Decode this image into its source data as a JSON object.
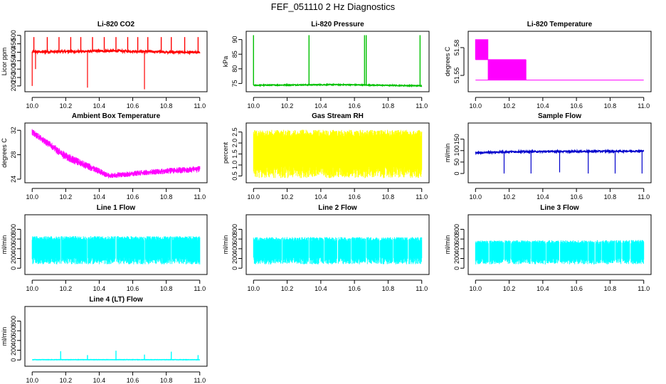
{
  "figure": {
    "title": "FEF_051110  2 Hz Diagnostics"
  },
  "chart_data": [
    {
      "type": "line",
      "title": "Li-820 CO2",
      "ylabel": "Licor ppm",
      "color": "#ff0000",
      "xlim": [
        10.0,
        11.0
      ],
      "ylim": [
        180,
        510
      ],
      "xticks": [
        10.0,
        10.2,
        10.4,
        10.6,
        10.8,
        11.0
      ],
      "xtick_labels": [
        "10.0",
        "10.2",
        "10.4",
        "10.6",
        "10.8",
        "11.0"
      ],
      "yticks": [
        200,
        250,
        300,
        350,
        400,
        450,
        500
      ],
      "ytick_labels": [
        "200",
        "250",
        "300",
        "350",
        "400",
        "450",
        "500"
      ],
      "pattern": {
        "kind": "baseline",
        "base": [
          [
            10.0,
            402
          ],
          [
            10.5,
            408
          ],
          [
            11.0,
            398
          ]
        ],
        "noise": 6,
        "spikes_up": [
          10.01,
          10.09,
          10.16,
          10.23,
          10.29,
          10.36,
          10.43,
          10.5,
          10.57,
          10.63,
          10.69,
          10.77,
          10.83,
          10.91,
          10.99
        ],
        "spike_up_to": 490,
        "spikes_down": [
          [
            10.0,
            200
          ],
          [
            10.02,
            300
          ],
          [
            10.33,
            190
          ],
          [
            10.67,
            180
          ]
        ]
      }
    },
    {
      "type": "line",
      "title": "Li-820 Pressure",
      "ylabel": "kPa",
      "color": "#00c000",
      "xlim": [
        10.0,
        11.0
      ],
      "ylim": [
        73,
        92
      ],
      "xticks": [
        10.0,
        10.2,
        10.4,
        10.6,
        10.8,
        11.0
      ],
      "xtick_labels": [
        "10.0",
        "10.2",
        "10.4",
        "10.6",
        "10.8",
        "11.0"
      ],
      "yticks": [
        75,
        80,
        85,
        90
      ],
      "ytick_labels": [
        "75",
        "80",
        "85",
        "90"
      ],
      "pattern": {
        "kind": "baseline",
        "base": [
          [
            10.0,
            74.4
          ],
          [
            10.5,
            74.6
          ],
          [
            11.0,
            74.2
          ]
        ],
        "noise": 0.15,
        "spikes_up": [
          10.0,
          10.33,
          10.66,
          10.67,
          10.99
        ],
        "spike_up_to": 91.5,
        "spikes_down": []
      }
    },
    {
      "type": "line",
      "title": "Li-820 Temperature",
      "ylabel": "degrees C",
      "color": "#ff00ff",
      "xlim": [
        10.0,
        11.0
      ],
      "ylim": [
        51.535,
        51.595
      ],
      "xticks": [
        10.0,
        10.2,
        10.4,
        10.6,
        10.8,
        11.0
      ],
      "xtick_labels": [
        "10.0",
        "10.2",
        "10.4",
        "10.6",
        "10.8",
        "11.0"
      ],
      "yticks": [
        51.55,
        51.58
      ],
      "ytick_labels": [
        "51.55",
        "51.58"
      ],
      "pattern": {
        "kind": "steps",
        "levels": [
          51.589,
          51.567,
          51.545
        ],
        "dense_end": 0.3
      }
    },
    {
      "type": "line",
      "title": "Ambient Box Temperature",
      "ylabel": "degrees C",
      "color": "#ff00ff",
      "xlim": [
        10.0,
        11.0
      ],
      "ylim": [
        23.8,
        32.8
      ],
      "xticks": [
        10.0,
        10.2,
        10.4,
        10.6,
        10.8,
        11.0
      ],
      "xtick_labels": [
        "10.0",
        "10.2",
        "10.4",
        "10.6",
        "10.8",
        "11.0"
      ],
      "yticks": [
        24,
        28,
        32
      ],
      "ytick_labels": [
        "24",
        "28",
        "32"
      ],
      "pattern": {
        "kind": "band",
        "upper": [
          [
            10.0,
            32.2
          ],
          [
            10.2,
            28.4
          ],
          [
            10.46,
            25.0
          ],
          [
            10.7,
            25.6
          ],
          [
            11.0,
            26.2
          ]
        ],
        "lower": [
          [
            10.0,
            31.2
          ],
          [
            10.2,
            27.0
          ],
          [
            10.46,
            24.1
          ],
          [
            10.7,
            24.7
          ],
          [
            11.0,
            25.1
          ]
        ]
      }
    },
    {
      "type": "line",
      "title": "Gas Stream RH",
      "ylabel": "percent",
      "color": "#ffff00",
      "xlim": [
        10.0,
        11.0
      ],
      "ylim": [
        0.3,
        2.8
      ],
      "xticks": [
        10.0,
        10.2,
        10.4,
        10.6,
        10.8,
        11.0
      ],
      "xtick_labels": [
        "10.0",
        "10.2",
        "10.4",
        "10.6",
        "10.8",
        "11.0"
      ],
      "yticks": [
        0.5,
        1.0,
        1.5,
        2.0,
        2.5
      ],
      "ytick_labels": [
        "0.5",
        "1.0",
        "1.5",
        "2.0",
        "2.5"
      ],
      "pattern": {
        "kind": "noise",
        "upper": [
          [
            10.0,
            2.6
          ],
          [
            11.0,
            2.6
          ]
        ],
        "lower": [
          [
            10.0,
            0.4
          ],
          [
            11.0,
            0.4
          ]
        ]
      }
    },
    {
      "type": "line",
      "title": "Sample Flow",
      "ylabel": "ml/min",
      "color": "#0000cc",
      "xlim": [
        10.0,
        11.0
      ],
      "ylim": [
        -30,
        210
      ],
      "xticks": [
        10.0,
        10.2,
        10.4,
        10.6,
        10.8,
        11.0
      ],
      "xtick_labels": [
        "10.0",
        "10.2",
        "10.4",
        "10.6",
        "10.8",
        "11.0"
      ],
      "yticks": [
        0,
        50,
        100,
        150
      ],
      "ytick_labels": [
        "0",
        "50",
        "100",
        "150"
      ],
      "pattern": {
        "kind": "baseline",
        "base": [
          [
            10.0,
            90
          ],
          [
            10.2,
            95
          ],
          [
            11.0,
            98
          ]
        ],
        "noise": 3,
        "spikes_up": [],
        "spike_up_to": 0,
        "spikes_down": [
          [
            10.17,
            0
          ],
          [
            10.33,
            0
          ],
          [
            10.5,
            5
          ],
          [
            10.67,
            0
          ],
          [
            10.83,
            0
          ],
          [
            10.99,
            0
          ]
        ]
      }
    },
    {
      "type": "line",
      "title": "Line 1 Flow",
      "ylabel": "ml/min",
      "color": "#00ffff",
      "xlim": [
        10.0,
        11.0
      ],
      "ylim": [
        -80,
        1050
      ],
      "xticks": [
        10.0,
        10.2,
        10.4,
        10.6,
        10.8,
        11.0
      ],
      "xtick_labels": [
        "10.0",
        "10.2",
        "10.4",
        "10.6",
        "10.8",
        "11.0"
      ],
      "yticks": [
        0,
        200,
        400,
        600,
        800
      ],
      "ytick_labels": [
        "0",
        "200",
        "400",
        "600",
        "800"
      ],
      "pattern": {
        "kind": "noise",
        "upper": [
          [
            10.0,
            660
          ],
          [
            11.0,
            660
          ]
        ],
        "lower": [
          [
            10.0,
            80
          ],
          [
            11.0,
            80
          ]
        ],
        "gaps": [
          10.17,
          10.33,
          10.5,
          10.67,
          10.83
        ]
      }
    },
    {
      "type": "line",
      "title": "Line 2 Flow",
      "ylabel": "ml/min",
      "color": "#00ffff",
      "xlim": [
        10.0,
        11.0
      ],
      "ylim": [
        -80,
        1050
      ],
      "xticks": [
        10.0,
        10.2,
        10.4,
        10.6,
        10.8,
        11.0
      ],
      "xtick_labels": [
        "10.0",
        "10.2",
        "10.4",
        "10.6",
        "10.8",
        "11.0"
      ],
      "yticks": [
        0,
        200,
        400,
        600,
        800
      ],
      "ytick_labels": [
        "0",
        "200",
        "400",
        "600",
        "800"
      ],
      "pattern": {
        "kind": "noise",
        "upper": [
          [
            10.0,
            640
          ],
          [
            11.0,
            640
          ]
        ],
        "lower": [
          [
            10.0,
            80
          ],
          [
            11.0,
            80
          ]
        ],
        "gaps": [
          10.17,
          10.33,
          10.42,
          10.5,
          10.58,
          10.67,
          10.75,
          10.83,
          10.92
        ]
      }
    },
    {
      "type": "line",
      "title": "Line 3 Flow",
      "ylabel": "ml/min",
      "color": "#00ffff",
      "xlim": [
        10.0,
        11.0
      ],
      "ylim": [
        -80,
        1050
      ],
      "xticks": [
        10.0,
        10.2,
        10.4,
        10.6,
        10.8,
        11.0
      ],
      "xtick_labels": [
        "10.0",
        "10.2",
        "10.4",
        "10.6",
        "10.8",
        "11.0"
      ],
      "yticks": [
        0,
        200,
        400,
        600,
        800
      ],
      "ytick_labels": [
        "0",
        "200",
        "400",
        "600",
        "800"
      ],
      "pattern": {
        "kind": "noise",
        "upper": [
          [
            10.0,
            570
          ],
          [
            11.0,
            580
          ]
        ],
        "lower": [
          [
            10.0,
            80
          ],
          [
            11.0,
            80
          ]
        ],
        "gaps": [
          10.08,
          10.17,
          10.21,
          10.33,
          10.42,
          10.5,
          10.67,
          10.71,
          10.75,
          10.83,
          10.87,
          10.92
        ]
      }
    },
    {
      "type": "line",
      "title": "Line 4 (LT) Flow",
      "ylabel": "ml/min",
      "color": "#00ffff",
      "xlim": [
        10.0,
        11.0
      ],
      "ylim": [
        -80,
        1050
      ],
      "xticks": [
        10.0,
        10.2,
        10.4,
        10.6,
        10.8,
        11.0
      ],
      "xtick_labels": [
        "10.0",
        "10.2",
        "10.4",
        "10.6",
        "10.8",
        "11.0"
      ],
      "yticks": [
        0,
        200,
        400,
        600,
        800
      ],
      "ytick_labels": [
        "0",
        "200",
        "400",
        "600",
        "800"
      ],
      "pattern": {
        "kind": "baseline",
        "base": [
          [
            10.0,
            5
          ],
          [
            11.0,
            5
          ]
        ],
        "noise": 3,
        "spikes_up": [
          [
            10.17,
            180
          ],
          [
            10.33,
            100
          ],
          [
            10.5,
            190
          ],
          [
            10.67,
            110
          ],
          [
            10.83,
            170
          ],
          [
            10.99,
            100
          ]
        ],
        "spike_up_to": 150,
        "spikes_down": []
      }
    }
  ]
}
